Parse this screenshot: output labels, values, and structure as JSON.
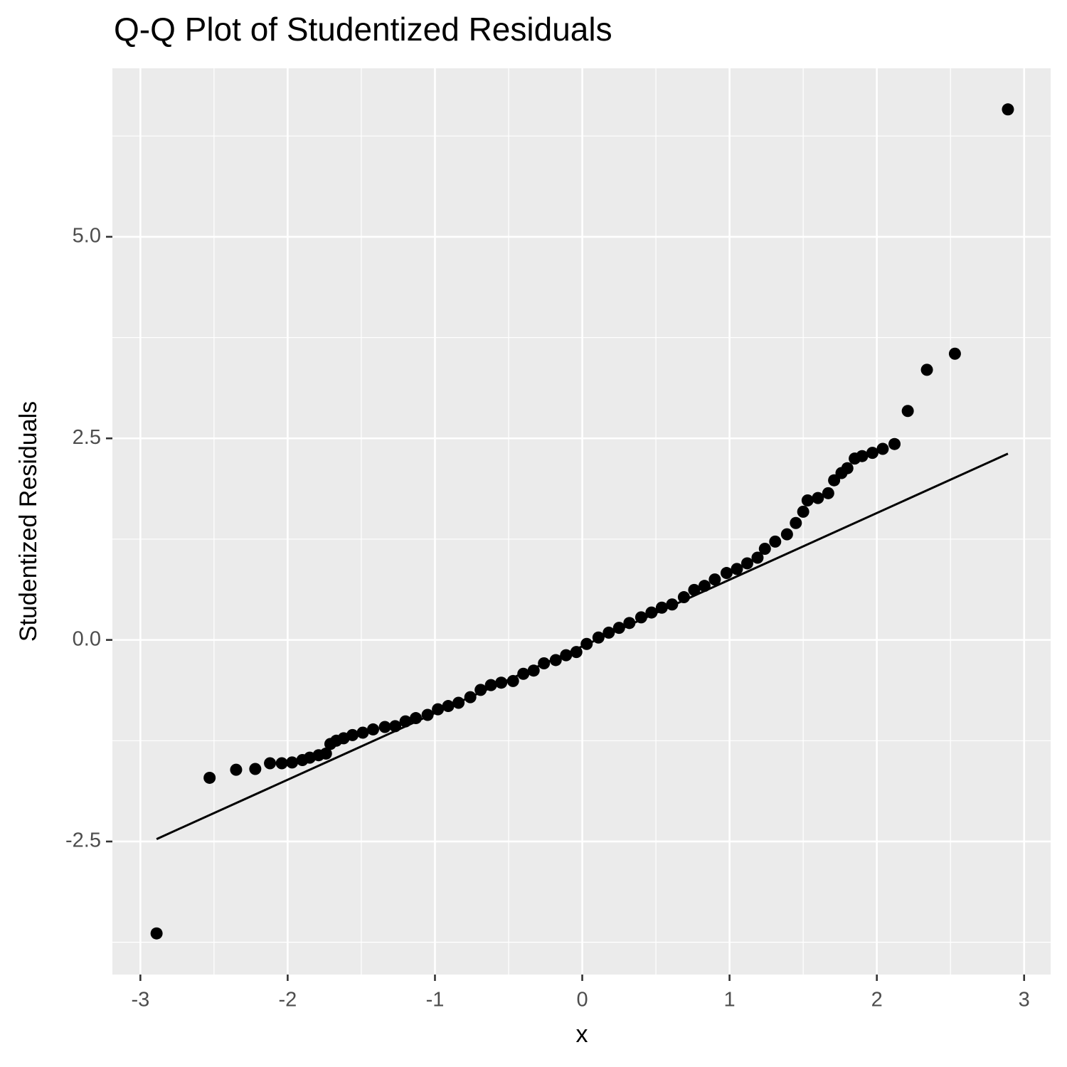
{
  "chart_data": {
    "type": "scatter",
    "title": "Q-Q Plot of Studentized Residuals",
    "x_label": "x",
    "y_label": "Studentized Residuals",
    "xlim": [
      -3.19,
      3.18
    ],
    "ylim": [
      -4.15,
      7.09
    ],
    "xticks": [
      -3,
      -2,
      -1,
      0,
      1,
      2,
      3
    ],
    "yticks": [
      -2.5,
      {
        "value": 0,
        "label": "0.0"
      },
      2.5,
      {
        "value": 5,
        "label": "5.0"
      }
    ],
    "grid": true,
    "minor_grid": true,
    "series": [
      {
        "style": "points",
        "color": "#000000",
        "x": [
          -2.89,
          -2.53,
          -2.35,
          -2.22,
          -2.12,
          -2.04,
          -1.97,
          -1.9,
          -1.85,
          -1.79,
          -1.74,
          -1.71,
          -1.67,
          -1.62,
          -1.56,
          -1.49,
          -1.42,
          -1.34,
          -1.27,
          -1.2,
          -1.13,
          -1.05,
          -0.98,
          -0.91,
          -0.84,
          -0.76,
          -0.69,
          -0.62,
          -0.55,
          -0.47,
          -0.4,
          -0.33,
          -0.26,
          -0.18,
          -0.11,
          -0.04,
          0.03,
          0.11,
          0.18,
          0.25,
          0.32,
          0.4,
          0.47,
          0.54,
          0.61,
          0.69,
          0.76,
          0.83,
          0.9,
          0.98,
          1.05,
          1.12,
          1.19,
          1.24,
          1.31,
          1.39,
          1.45,
          1.5,
          1.53,
          1.6,
          1.67,
          1.71,
          1.76,
          1.8,
          1.85,
          1.9,
          1.97,
          2.04,
          2.12,
          2.21,
          2.34,
          2.53,
          2.89
        ],
        "y": [
          -3.64,
          -1.71,
          -1.61,
          -1.6,
          -1.53,
          -1.53,
          -1.52,
          -1.49,
          -1.46,
          -1.43,
          -1.41,
          -1.29,
          -1.25,
          -1.22,
          -1.18,
          -1.15,
          -1.11,
          -1.08,
          -1.07,
          -1.01,
          -0.97,
          -0.93,
          -0.86,
          -0.82,
          -0.78,
          -0.71,
          -0.62,
          -0.56,
          -0.53,
          -0.51,
          -0.42,
          -0.38,
          -0.29,
          -0.25,
          -0.19,
          -0.15,
          -0.05,
          0.03,
          0.09,
          0.15,
          0.21,
          0.28,
          0.34,
          0.4,
          0.44,
          0.53,
          0.62,
          0.67,
          0.75,
          0.83,
          0.88,
          0.95,
          1.02,
          1.13,
          1.22,
          1.31,
          1.45,
          1.59,
          1.73,
          1.76,
          1.82,
          1.98,
          2.07,
          2.13,
          2.25,
          2.28,
          2.32,
          2.37,
          2.43,
          2.84,
          3.35,
          3.55,
          6.58
        ]
      },
      {
        "style": "line",
        "color": "#000000",
        "x": [
          -2.89,
          2.89
        ],
        "y": [
          -2.47,
          2.31
        ]
      }
    ]
  }
}
